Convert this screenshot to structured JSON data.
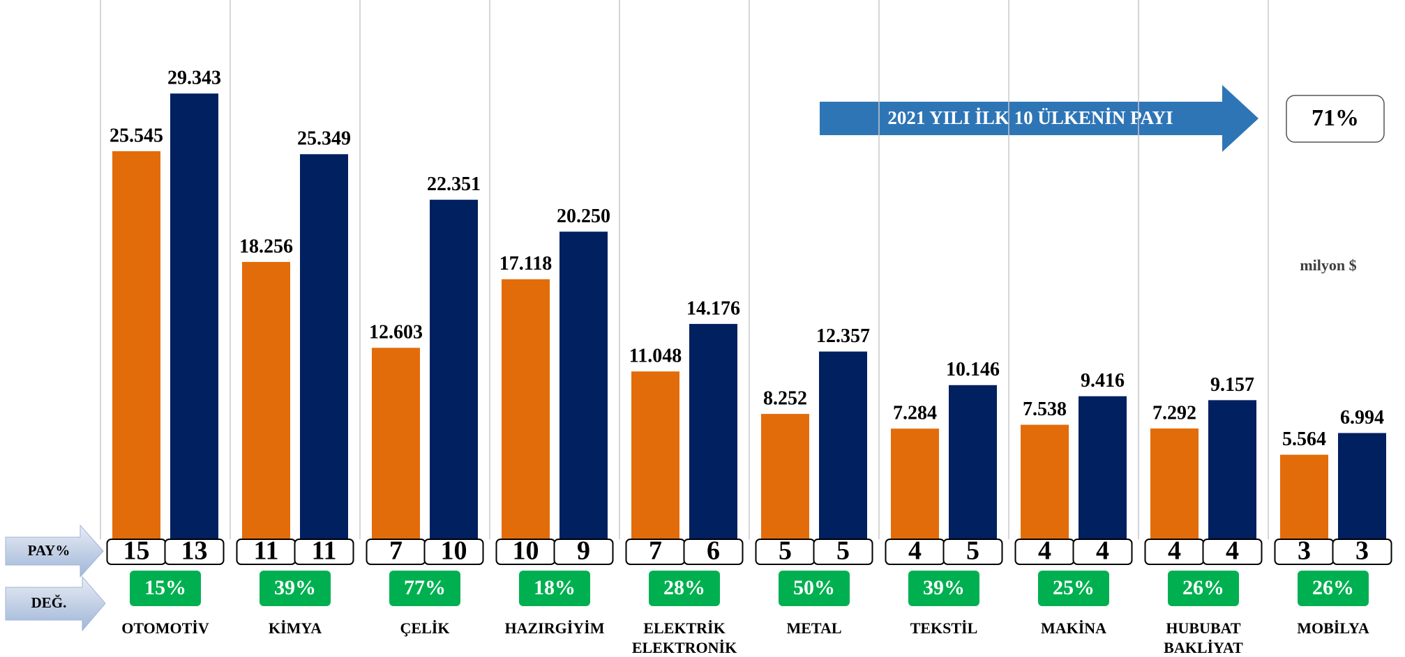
{
  "chart_data": {
    "type": "bar",
    "categories": [
      "OTOMOTİV",
      "KİMYA",
      "ÇELİK",
      "HAZIRGİYİM",
      "ELEKTRİK\nELEKTRONİK",
      "METAL",
      "TEKSTİL",
      "MAKİNA",
      "HUBUBAT\nBAKLİYAT",
      "MOBİLYA"
    ],
    "series": [
      {
        "color": "#e36c0a",
        "values": [
          25545,
          18256,
          12603,
          17118,
          11048,
          8252,
          7284,
          7538,
          7292,
          5564
        ],
        "value_labels": [
          "25.545",
          "18.256",
          "12.603",
          "17.118",
          "11.048",
          "8.252",
          "7.284",
          "7.538",
          "7.292",
          "5.564"
        ],
        "shares": [
          15,
          11,
          7,
          10,
          7,
          5,
          4,
          4,
          4,
          3
        ]
      },
      {
        "color": "#002060",
        "values": [
          29343,
          25349,
          22351,
          20250,
          14176,
          12357,
          10146,
          9416,
          9157,
          6994
        ],
        "value_labels": [
          "29.343",
          "25.349",
          "22.351",
          "20.250",
          "14.176",
          "12.357",
          "10.146",
          "9.416",
          "9.157",
          "6.994"
        ],
        "shares": [
          13,
          11,
          10,
          9,
          6,
          5,
          5,
          4,
          4,
          3
        ]
      }
    ],
    "changes": [
      "15%",
      "39%",
      "77%",
      "18%",
      "28%",
      "50%",
      "39%",
      "25%",
      "26%",
      "26%"
    ],
    "ylim": [
      0,
      35500
    ],
    "share_label": "PAY%",
    "change_label": "DEĞ.",
    "banner": "2021 YILI İLK 10 ÜLKENİN PAYI",
    "banner_value": "71%",
    "unit": "milyon $"
  }
}
